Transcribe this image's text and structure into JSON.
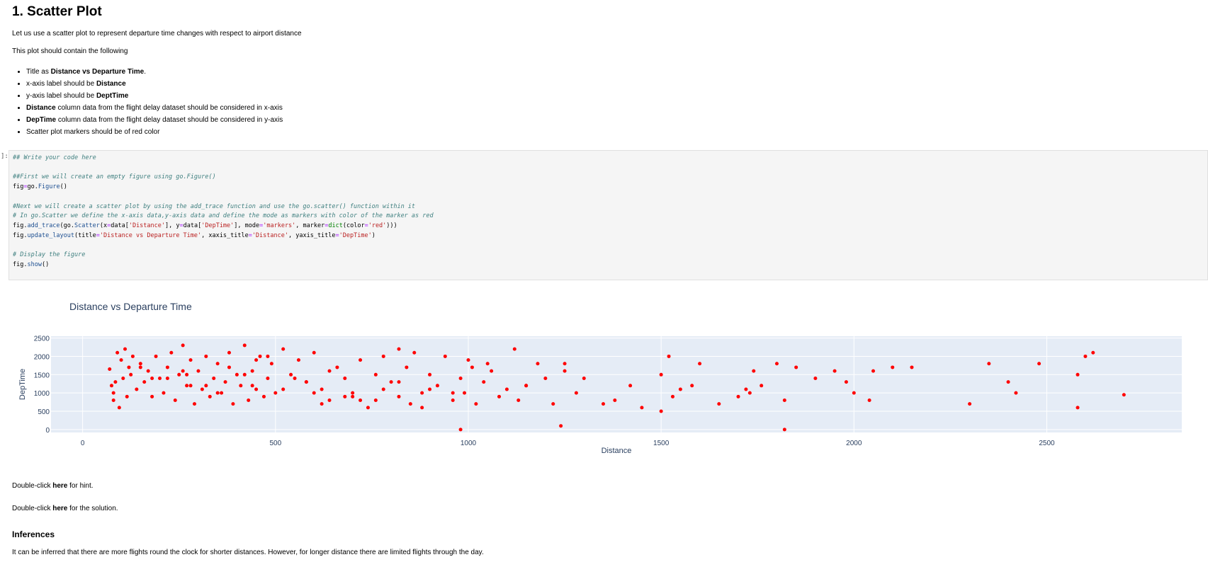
{
  "title": "1. Scatter Plot",
  "intro": "Let us use a scatter plot to represent departure time changes with respect to airport distance",
  "contains": "This plot should contain the following",
  "bullets": [
    {
      "pre": "Title as ",
      "bold": "Distance vs Departure Time",
      "post": "."
    },
    {
      "pre": "x-axis label should be ",
      "bold": "Distance",
      "post": ""
    },
    {
      "pre": "y-axis label should be ",
      "bold": "DeptTime",
      "post": ""
    },
    {
      "pre": "",
      "bold": "Distance",
      "post": " column data from the flight delay dataset should be considered in x-axis"
    },
    {
      "pre": "",
      "bold": "DepTime",
      "post": " column data from the flight delay dataset should be considered in y-axis"
    },
    {
      "pre": "",
      "bold": "",
      "post": "Scatter plot markers should be of red color"
    }
  ],
  "prompt": "]:",
  "code": {
    "l1": "## Write your code here",
    "l2": "##First we will create an empty figure using go.Figure()",
    "l3a": "fig",
    "l3b": "=",
    "l3c": "go",
    "l3d": ".",
    "l3e": "Figure",
    "l3f": "()",
    "l4": "#Next we will create a scatter plot by using the add_trace function and use the go.scatter() function within it",
    "l5": "# In go.Scatter we define the x-axis data,y-axis data and define the mode as markers with color of the marker as red",
    "l8": "# Display the figure",
    "s_distance": "'Distance'",
    "s_deptime": "'DepTime'",
    "s_markers": "'markers'",
    "s_red": "'red'",
    "s_title": "'Distance vs Departure Time'"
  },
  "hint": {
    "pre": "Double-click ",
    "bold": "here",
    "post": " for hint."
  },
  "solution": {
    "pre": "Double-click ",
    "bold": "here",
    "post": " for the solution."
  },
  "inferences_heading": "Inferences",
  "inferences_text": "It can be inferred that there are more flights round the clock for shorter distances. However, for longer distance there are limited flights through the day.",
  "chart_data": {
    "type": "scatter",
    "title": "Distance vs Departure Time",
    "xlabel": "Distance",
    "ylabel": "DepTime",
    "xlim": [
      -82,
      2850
    ],
    "ylim": [
      -80,
      2550
    ],
    "xticks": [
      0,
      500,
      1000,
      1500,
      2000,
      2500
    ],
    "yticks": [
      0,
      500,
      1000,
      1500,
      2000,
      2500
    ],
    "grid": true,
    "marker_color": "#ff0000",
    "plot_bg": "#e5ecf6",
    "series": [
      {
        "x": [
          70,
          75,
          80,
          85,
          90,
          95,
          100,
          105,
          110,
          115,
          120,
          125,
          130,
          140,
          150,
          160,
          170,
          180,
          190,
          200,
          210,
          220,
          230,
          240,
          250,
          260,
          270,
          280,
          290,
          300,
          310,
          320,
          330,
          340,
          350,
          360,
          370,
          380,
          390,
          400,
          410,
          420,
          430,
          440,
          450,
          460,
          470,
          480,
          490,
          500,
          520,
          540,
          560,
          580,
          600,
          620,
          640,
          660,
          680,
          700,
          720,
          740,
          760,
          780,
          800,
          820,
          840,
          860,
          880,
          900,
          920,
          940,
          960,
          980,
          990,
          1000,
          1020,
          1040,
          1060,
          1080,
          1100,
          1120,
          1150,
          1180,
          1200,
          1220,
          1250,
          1280,
          1300,
          1350,
          1380,
          1420,
          1450,
          1500,
          1520,
          1550,
          1580,
          1600,
          1650,
          1700,
          1720,
          1740,
          1760,
          1800,
          1820,
          1850,
          1900,
          1950,
          1980,
          2000,
          2050,
          2100,
          2150,
          2300,
          2350,
          2400,
          2420,
          2480,
          2580,
          2600,
          2620,
          2700,
          980,
          1820,
          1240,
          1500,
          260,
          440,
          600,
          760,
          900,
          150,
          350,
          550,
          700,
          850,
          1050,
          1150,
          270,
          450,
          640,
          820,
          960,
          1130,
          80,
          180,
          280,
          380,
          480,
          580,
          680,
          780,
          880,
          220,
          320,
          420,
          520,
          620,
          720,
          820,
          1010,
          1250,
          1530,
          1730,
          2040,
          2580
        ],
        "y": [
          1650,
          1200,
          800,
          1300,
          2100,
          600,
          1900,
          1400,
          2200,
          900,
          1700,
          1500,
          2000,
          1100,
          1800,
          1300,
          1600,
          900,
          2000,
          1400,
          1000,
          1700,
          2100,
          800,
          1500,
          2300,
          1200,
          1900,
          700,
          1600,
          1100,
          2000,
          900,
          1400,
          1800,
          1000,
          1300,
          2100,
          700,
          1500,
          1200,
          2300,
          800,
          1600,
          1100,
          2000,
          900,
          1400,
          1800,
          1000,
          2200,
          1500,
          1900,
          1300,
          2100,
          1100,
          800,
          1700,
          1400,
          1000,
          1900,
          600,
          1500,
          2000,
          1300,
          900,
          1700,
          2100,
          1000,
          1500,
          1200,
          2000,
          800,
          1400,
          1000,
          1900,
          700,
          1300,
          1600,
          900,
          1100,
          2200,
          1200,
          1800,
          1400,
          700,
          1800,
          1000,
          1400,
          700,
          800,
          1200,
          600,
          500,
          2000,
          1100,
          1200,
          1800,
          700,
          900,
          1100,
          1600,
          1200,
          1800,
          800,
          1700,
          1400,
          1600,
          1300,
          1000,
          1600,
          1700,
          1700,
          700,
          1800,
          1300,
          1000,
          1800,
          1500,
          2000,
          2100,
          950,
          0,
          0,
          100,
          1500,
          1600,
          1200,
          1000,
          800,
          1100,
          1700,
          1000,
          1400,
          900,
          700,
          1800,
          1200,
          1500,
          1900,
          1600,
          1300,
          1000,
          800,
          1000,
          1400,
          1200,
          1700,
          2000,
          1300,
          900,
          1100,
          600,
          1400,
          1200,
          1500,
          1100,
          700,
          800,
          2200,
          1700,
          1600,
          900,
          1000,
          800,
          600
        ]
      }
    ]
  }
}
